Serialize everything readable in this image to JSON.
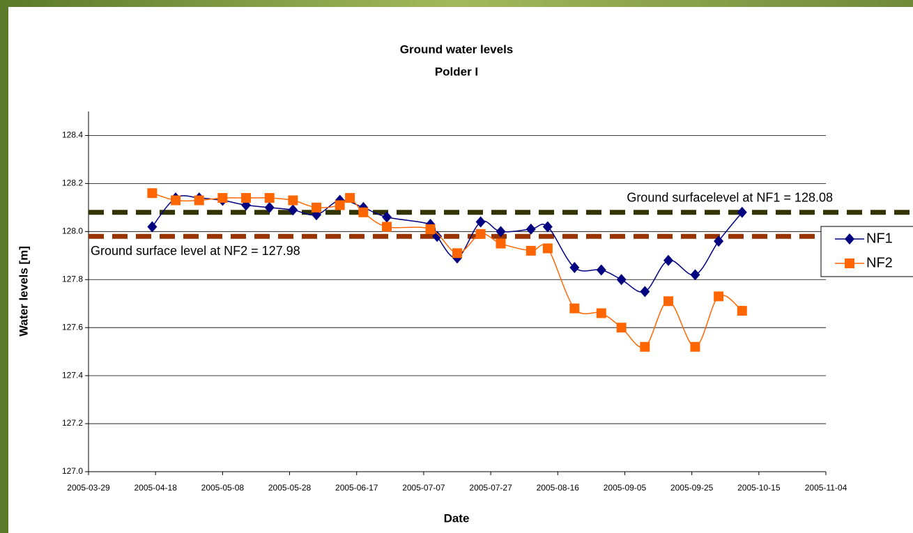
{
  "chart_data": {
    "type": "line",
    "title": "Ground water levels",
    "subtitle": "Polder I",
    "x_label": "Date",
    "y_label": "Water levels [m]",
    "xlim": [
      "2005-03-29",
      "2005-11-04"
    ],
    "xticks": [
      "2005-03-29",
      "2005-04-18",
      "2005-05-08",
      "2005-05-28",
      "2005-06-17",
      "2005-07-07",
      "2005-07-27",
      "2005-08-16",
      "2005-09-05",
      "2005-09-25",
      "2005-10-15",
      "2005-11-04"
    ],
    "ylim": [
      127,
      128.5
    ],
    "yticks": [
      {
        "value": 127,
        "label": "127.0"
      },
      127.2,
      127.4,
      127.6,
      127.8,
      {
        "value": 128,
        "label": "128.0"
      },
      128.2,
      128.4
    ],
    "grid": true,
    "legend": "right",
    "series": [
      {
        "name": "NF1",
        "color": "#000080",
        "marker": "diamond",
        "x": [
          "2005-04-17",
          "2005-04-24",
          "2005-05-01",
          "2005-05-08",
          "2005-05-15",
          "2005-05-22",
          "2005-05-29",
          "2005-06-05",
          "2005-06-12",
          "2005-06-19",
          "2005-06-26",
          "2005-07-09",
          "2005-07-11",
          "2005-07-17",
          "2005-07-24",
          "2005-07-30",
          "2005-08-08",
          "2005-08-13",
          "2005-08-21",
          "2005-08-29",
          "2005-09-04",
          "2005-09-11",
          "2005-09-18",
          "2005-09-26",
          "2005-10-03",
          "2005-10-10"
        ],
        "values": [
          128.02,
          128.14,
          128.14,
          128.13,
          128.11,
          128.1,
          128.09,
          128.07,
          128.13,
          128.1,
          128.06,
          128.03,
          127.98,
          127.89,
          128.04,
          128.0,
          128.01,
          128.02,
          127.85,
          127.84,
          127.8,
          127.75,
          127.88,
          127.82,
          127.96,
          128.08
        ]
      },
      {
        "name": "NF2",
        "color": "#ff6600",
        "marker": "square",
        "x": [
          "2005-04-17",
          "2005-04-24",
          "2005-05-01",
          "2005-05-08",
          "2005-05-15",
          "2005-05-22",
          "2005-05-29",
          "2005-06-05",
          "2005-06-12",
          "2005-06-15",
          "2005-06-19",
          "2005-06-26",
          "2005-07-09",
          "2005-07-17",
          "2005-07-24",
          "2005-07-30",
          "2005-08-08",
          "2005-08-13",
          "2005-08-21",
          "2005-08-29",
          "2005-09-04",
          "2005-09-11",
          "2005-09-18",
          "2005-09-26",
          "2005-10-03",
          "2005-10-10"
        ],
        "values": [
          128.16,
          128.13,
          128.13,
          128.14,
          128.14,
          128.14,
          128.13,
          128.1,
          128.11,
          128.14,
          128.08,
          128.02,
          128.01,
          127.91,
          127.99,
          127.95,
          127.92,
          127.93,
          127.68,
          127.66,
          127.6,
          127.52,
          127.71,
          127.52,
          127.73,
          127.67
        ]
      }
    ],
    "reference_lines": [
      {
        "value": 128.08,
        "label": "Ground surfacelevel at NF1 = 128.08",
        "color": "#333300"
      },
      {
        "value": 127.98,
        "label": "Ground surface level at NF2 = 127.98",
        "color": "#993300"
      }
    ]
  }
}
